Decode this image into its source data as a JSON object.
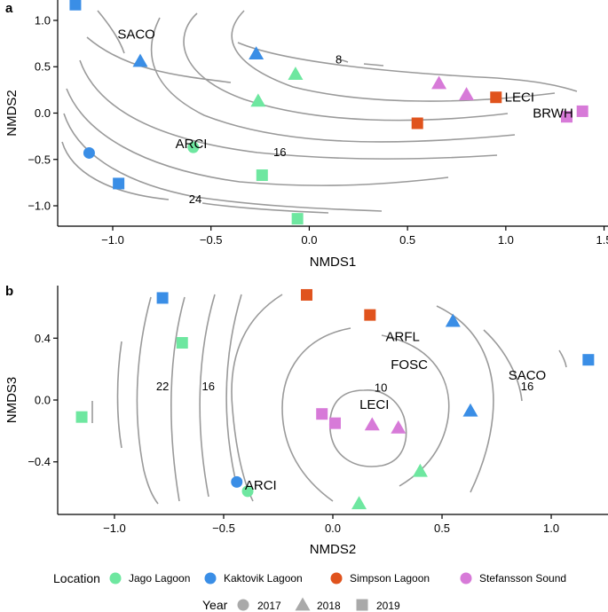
{
  "colors": {
    "Jago Lagoon": "#6ee7a0",
    "Kaktovik Lagoon": "#3a8ee6",
    "Simpson Lagoon": "#e0531d",
    "Stefansson Sound": "#d77ad8",
    "contour": "#9a9a9a",
    "year_legend": "#a9a9a9"
  },
  "legend": {
    "location_title": "Location",
    "locations": [
      "Jago Lagoon",
      "Kaktovik Lagoon",
      "Simpson Lagoon",
      "Stefansson Sound"
    ],
    "year_title": "Year",
    "years": [
      "2017",
      "2018",
      "2019"
    ],
    "year_shapes": {
      "2017": "circle",
      "2018": "triangle",
      "2019": "square"
    }
  },
  "chart_data": [
    {
      "panel": "a",
      "type": "scatter",
      "xlabel": "NMDS1",
      "ylabel": "NMDS2",
      "xlim": [
        -1.28,
        1.52
      ],
      "ylim": [
        -1.22,
        1.22
      ],
      "xticks": [
        -1.0,
        -0.5,
        0.0,
        0.5,
        1.0,
        1.5
      ],
      "yticks": [
        -1.0,
        -0.5,
        0.0,
        0.5,
        1.0
      ],
      "xtick_labels": [
        "−1.0",
        "−0.5",
        "0.0",
        "0.5",
        "1.0",
        "1.5"
      ],
      "ytick_labels": [
        "−1.0",
        "−0.5",
        "0.0",
        "0.5",
        "1.0"
      ],
      "contour_labels": [
        {
          "text": "8",
          "x": 0.15,
          "y": 0.58
        },
        {
          "text": "16",
          "x": -0.15,
          "y": -0.42
        },
        {
          "text": "24",
          "x": -0.58,
          "y": -0.93
        }
      ],
      "species": [
        {
          "text": "SACO",
          "x": -0.88,
          "y": 0.85
        },
        {
          "text": "ARCI",
          "x": -0.6,
          "y": -0.33
        },
        {
          "text": "LECI",
          "x": 1.07,
          "y": 0.17
        },
        {
          "text": "BRWH",
          "x": 1.24,
          "y": 0.0
        }
      ],
      "points": [
        {
          "location": "Kaktovik Lagoon",
          "year": "2019",
          "x": -1.19,
          "y": 1.17
        },
        {
          "location": "Kaktovik Lagoon",
          "year": "2018",
          "x": -0.86,
          "y": 0.56
        },
        {
          "location": "Kaktovik Lagoon",
          "year": "2018",
          "x": -0.27,
          "y": 0.64
        },
        {
          "location": "Kaktovik Lagoon",
          "year": "2017",
          "x": -1.12,
          "y": -0.43
        },
        {
          "location": "Kaktovik Lagoon",
          "year": "2019",
          "x": -0.97,
          "y": -0.76
        },
        {
          "location": "Jago Lagoon",
          "year": "2018",
          "x": -0.07,
          "y": 0.42
        },
        {
          "location": "Jago Lagoon",
          "year": "2018",
          "x": -0.26,
          "y": 0.13
        },
        {
          "location": "Jago Lagoon",
          "year": "2017",
          "x": -0.59,
          "y": -0.37
        },
        {
          "location": "Jago Lagoon",
          "year": "2019",
          "x": -0.24,
          "y": -0.67
        },
        {
          "location": "Jago Lagoon",
          "year": "2019",
          "x": -0.06,
          "y": -1.14
        },
        {
          "location": "Stefansson Sound",
          "year": "2018",
          "x": 0.66,
          "y": 0.32
        },
        {
          "location": "Stefansson Sound",
          "year": "2018",
          "x": 0.8,
          "y": 0.2
        },
        {
          "location": "Stefansson Sound",
          "year": "2019",
          "x": 1.31,
          "y": -0.04
        },
        {
          "location": "Stefansson Sound",
          "year": "2019",
          "x": 1.39,
          "y": 0.02
        },
        {
          "location": "Simpson Lagoon",
          "year": "2019",
          "x": 0.95,
          "y": 0.17
        },
        {
          "location": "Simpson Lagoon",
          "year": "2019",
          "x": 0.55,
          "y": -0.11
        }
      ]
    },
    {
      "panel": "b",
      "type": "scatter",
      "xlabel": "NMDS2",
      "ylabel": "NMDS3",
      "xlim": [
        -1.26,
        1.26
      ],
      "ylim": [
        -0.74,
        0.74
      ],
      "xticks": [
        -1.0,
        -0.5,
        0.0,
        0.5,
        1.0
      ],
      "yticks": [
        -0.4,
        0.0,
        0.4
      ],
      "xtick_labels": [
        "−1.0",
        "−0.5",
        "0.0",
        "0.5",
        "1.0"
      ],
      "ytick_labels": [
        "−0.4",
        "0.0",
        "0.4"
      ],
      "contour_labels": [
        {
          "text": "22",
          "x": -0.78,
          "y": 0.09
        },
        {
          "text": "16",
          "x": -0.57,
          "y": 0.09
        },
        {
          "text": "10",
          "x": 0.22,
          "y": 0.08
        },
        {
          "text": "16",
          "x": 0.89,
          "y": 0.09
        }
      ],
      "species": [
        {
          "text": "ARFL",
          "x": 0.32,
          "y": 0.41
        },
        {
          "text": "FOSC",
          "x": 0.35,
          "y": 0.23
        },
        {
          "text": "SACO",
          "x": 0.89,
          "y": 0.16
        },
        {
          "text": "LECI",
          "x": 0.19,
          "y": -0.03
        },
        {
          "text": "ARCI",
          "x": -0.33,
          "y": -0.55
        }
      ],
      "points": [
        {
          "location": "Kaktovik Lagoon",
          "year": "2019",
          "x": -0.78,
          "y": 0.66
        },
        {
          "location": "Kaktovik Lagoon",
          "year": "2018",
          "x": 0.55,
          "y": 0.51
        },
        {
          "location": "Kaktovik Lagoon",
          "year": "2019",
          "x": 1.17,
          "y": 0.26
        },
        {
          "location": "Kaktovik Lagoon",
          "year": "2018",
          "x": 0.63,
          "y": -0.07
        },
        {
          "location": "Kaktovik Lagoon",
          "year": "2017",
          "x": -0.44,
          "y": -0.53
        },
        {
          "location": "Simpson Lagoon",
          "year": "2019",
          "x": -0.12,
          "y": 0.68
        },
        {
          "location": "Simpson Lagoon",
          "year": "2019",
          "x": 0.17,
          "y": 0.55
        },
        {
          "location": "Jago Lagoon",
          "year": "2019",
          "x": -0.69,
          "y": 0.37
        },
        {
          "location": "Jago Lagoon",
          "year": "2019",
          "x": -1.15,
          "y": -0.11
        },
        {
          "location": "Jago Lagoon",
          "year": "2017",
          "x": -0.39,
          "y": -0.59
        },
        {
          "location": "Jago Lagoon",
          "year": "2018",
          "x": 0.12,
          "y": -0.67
        },
        {
          "location": "Jago Lagoon",
          "year": "2018",
          "x": 0.4,
          "y": -0.46
        },
        {
          "location": "Stefansson Sound",
          "year": "2019",
          "x": -0.05,
          "y": -0.09
        },
        {
          "location": "Stefansson Sound",
          "year": "2019",
          "x": 0.01,
          "y": -0.15
        },
        {
          "location": "Stefansson Sound",
          "year": "2018",
          "x": 0.18,
          "y": -0.16
        },
        {
          "location": "Stefansson Sound",
          "year": "2018",
          "x": 0.3,
          "y": -0.18
        }
      ]
    }
  ]
}
